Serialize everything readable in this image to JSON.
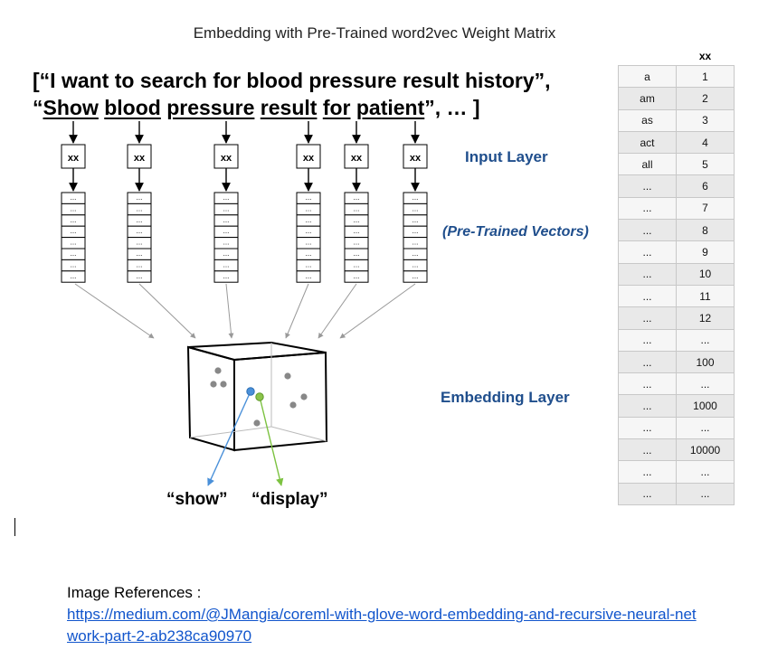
{
  "title": "Embedding with Pre-Trained word2vec Weight Matrix",
  "sentence_line1": "[“I want to search for blood pressure result history”,",
  "sentence_line2": {
    "open": "“",
    "w1": "Show",
    "w2": "blood",
    "w3": "pressure",
    "w4": "result",
    "w5": "for",
    "w6": "patient",
    "close": "”, … ]"
  },
  "input_box_label": "xx",
  "vector_cell_label": "...",
  "labels": {
    "input_layer": "Input Layer",
    "pretrained_vectors": "(Pre-Trained Vectors)",
    "embedding_layer": "Embedding Layer"
  },
  "output_words": {
    "show": "“show”",
    "display": "“display”"
  },
  "colors": {
    "accent_blue": "#1f4e8c",
    "show_point": "#4a90d9",
    "display_point": "#8bc34a"
  },
  "vocab_table": {
    "header": "xx",
    "rows": [
      [
        "a",
        "1"
      ],
      [
        "am",
        "2"
      ],
      [
        "as",
        "3"
      ],
      [
        "act",
        "4"
      ],
      [
        "all",
        "5"
      ],
      [
        "...",
        "6"
      ],
      [
        "...",
        "7"
      ],
      [
        "...",
        "8"
      ],
      [
        "...",
        "9"
      ],
      [
        "...",
        "10"
      ],
      [
        "...",
        "11"
      ],
      [
        "...",
        "12"
      ],
      [
        "...",
        "..."
      ],
      [
        "...",
        "100"
      ],
      [
        "...",
        "..."
      ],
      [
        "...",
        "1000"
      ],
      [
        "...",
        "..."
      ],
      [
        "...",
        "10000"
      ],
      [
        "...",
        "..."
      ],
      [
        "...",
        "..."
      ]
    ]
  },
  "references": {
    "heading": "Image References :",
    "link": "https://medium.com/@JMangia/coreml-with-glove-word-embedding-and-recursive-neural-network-part-2-ab238ca90970"
  }
}
